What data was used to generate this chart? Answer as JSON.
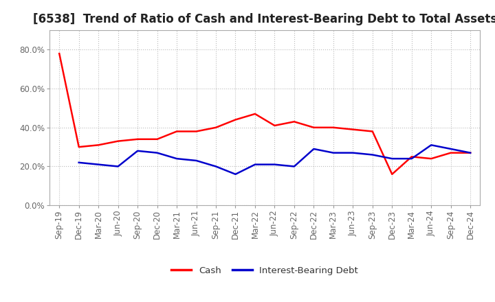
{
  "title": "[6538]  Trend of Ratio of Cash and Interest-Bearing Debt to Total Assets",
  "x_labels": [
    "Sep-19",
    "Dec-19",
    "Mar-20",
    "Jun-20",
    "Sep-20",
    "Dec-20",
    "Mar-21",
    "Jun-21",
    "Sep-21",
    "Dec-21",
    "Mar-22",
    "Jun-22",
    "Sep-22",
    "Dec-22",
    "Mar-23",
    "Jun-23",
    "Sep-23",
    "Dec-23",
    "Mar-24",
    "Jun-24",
    "Sep-24",
    "Dec-24"
  ],
  "cash": [
    0.78,
    0.3,
    0.31,
    0.33,
    0.34,
    0.34,
    0.38,
    0.38,
    0.4,
    0.44,
    0.47,
    0.41,
    0.43,
    0.4,
    0.4,
    0.39,
    0.38,
    0.16,
    0.25,
    0.24,
    0.27,
    0.27
  ],
  "debt": [
    null,
    0.22,
    0.21,
    0.2,
    0.28,
    0.27,
    0.24,
    0.23,
    0.2,
    0.16,
    0.21,
    0.21,
    0.2,
    0.29,
    0.27,
    0.27,
    0.26,
    0.24,
    0.24,
    0.31,
    0.29,
    0.27
  ],
  "cash_color": "#ff0000",
  "debt_color": "#0000cc",
  "ylim": [
    0.0,
    0.9
  ],
  "yticks": [
    0.0,
    0.2,
    0.4,
    0.6,
    0.8
  ],
  "ytick_labels": [
    "0.0%",
    "20.0%",
    "40.0%",
    "60.0%",
    "80.0%"
  ],
  "background_color": "#ffffff",
  "plot_bg_color": "#ffffff",
  "grid_color": "#bbbbbb",
  "title_fontsize": 12,
  "axis_fontsize": 8.5,
  "tick_color": "#666666",
  "legend_fontsize": 9.5,
  "line_width": 1.8
}
